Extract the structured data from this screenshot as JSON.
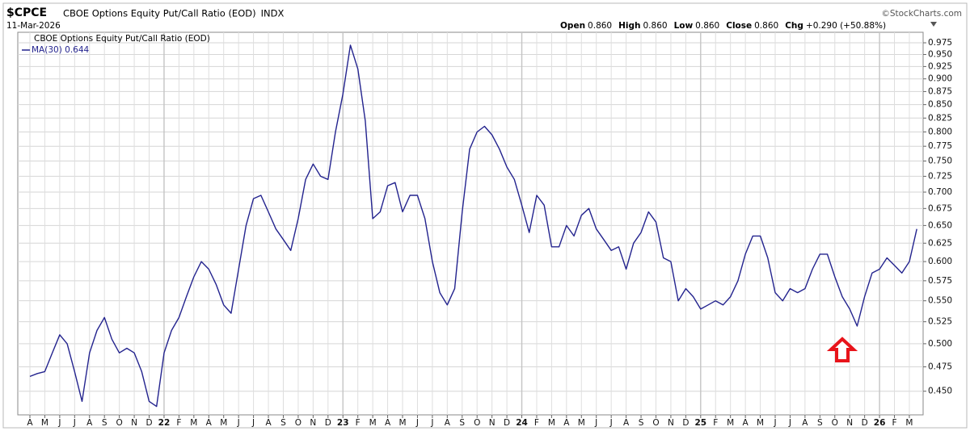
{
  "chart_data": {
    "type": "line",
    "symbol": "$CPCE",
    "title": "CBOE Options Equity Put/Call Ratio (EOD)",
    "exchange": "INDX",
    "date": "11-Mar-2026",
    "source": "©StockCharts.com",
    "quote": [
      {
        "label": "Open",
        "value": "0.860"
      },
      {
        "label": "High",
        "value": "0.860"
      },
      {
        "label": "Low",
        "value": "0.860"
      },
      {
        "label": "Close",
        "value": "0.860"
      },
      {
        "label": "Chg",
        "value": "+0.290 (+50.88%)"
      }
    ],
    "legend_title": "CBOE Options Equity Put/Call Ratio (EOD)",
    "log": true,
    "grid": true,
    "legend": "upper left",
    "categories": [
      "A",
      null,
      "M",
      null,
      "J",
      null,
      "J",
      null,
      "A",
      null,
      "S",
      null,
      "O",
      null,
      "N",
      null,
      "D",
      null,
      "22",
      null,
      "F",
      null,
      "M",
      null,
      "A",
      null,
      "M",
      null,
      "J",
      null,
      "J",
      null,
      "A",
      null,
      "S",
      null,
      "O",
      null,
      "N",
      null,
      "D",
      null,
      "23",
      null,
      "F",
      null,
      "M",
      null,
      "A",
      null,
      "M",
      null,
      "J",
      null,
      "J",
      null,
      "A",
      null,
      "S",
      null,
      "O",
      null,
      "N",
      null,
      "D",
      null,
      "24",
      null,
      "F",
      null,
      "M",
      null,
      "A",
      null,
      "M",
      null,
      "J",
      null,
      "J",
      null,
      "A",
      null,
      "S",
      null,
      "O",
      null,
      "N",
      null,
      "D",
      null,
      "25",
      null,
      "F",
      null,
      "M",
      null,
      "A",
      null,
      "M",
      null,
      "J",
      null,
      "J",
      null,
      "A",
      null,
      "S",
      null,
      "O",
      null,
      "N",
      null,
      "D",
      null,
      "26",
      null,
      "F",
      null,
      "M",
      null
    ],
    "series": [
      {
        "name": "MA(30) 0.644",
        "color": "#23238e",
        "values": [
          0.465,
          0.468,
          0.47,
          0.49,
          0.51,
          0.5,
          0.47,
          0.44,
          0.49,
          0.515,
          0.53,
          0.505,
          0.49,
          0.495,
          0.49,
          0.47,
          0.44,
          0.435,
          0.49,
          0.515,
          0.53,
          0.555,
          0.58,
          0.6,
          0.59,
          0.57,
          0.545,
          0.535,
          0.59,
          0.65,
          0.69,
          0.695,
          0.67,
          0.645,
          0.63,
          0.615,
          0.66,
          0.72,
          0.745,
          0.725,
          0.72,
          0.8,
          0.87,
          0.97,
          0.92,
          0.82,
          0.66,
          0.67,
          0.71,
          0.715,
          0.67,
          0.695,
          0.695,
          0.66,
          0.6,
          0.56,
          0.545,
          0.565,
          0.67,
          0.77,
          0.8,
          0.81,
          0.795,
          0.77,
          0.74,
          0.72,
          0.68,
          0.64,
          0.695,
          0.68,
          0.62,
          0.62,
          0.65,
          0.635,
          0.665,
          0.675,
          0.645,
          0.63,
          0.615,
          0.62,
          0.59,
          0.625,
          0.64,
          0.67,
          0.655,
          0.605,
          0.6,
          0.55,
          0.565,
          0.555,
          0.54,
          0.545,
          0.55,
          0.545,
          0.555,
          0.575,
          0.61,
          0.635,
          0.635,
          0.605,
          0.56,
          0.55,
          0.565,
          0.56,
          0.565,
          0.59,
          0.61,
          0.61,
          0.58,
          0.555,
          0.54,
          0.52,
          0.555,
          0.585,
          0.59,
          0.605,
          0.595,
          0.585,
          0.6,
          0.645
        ]
      }
    ],
    "ylim": [
      0.427,
      0.998
    ],
    "yticks": [
      {
        "value": 0.45,
        "label": "0.450"
      },
      {
        "value": 0.475,
        "label": "0.475"
      },
      {
        "value": 0.5,
        "label": "0.500"
      },
      {
        "value": 0.525,
        "label": "0.525"
      },
      {
        "value": 0.55,
        "label": "0.550"
      },
      {
        "value": 0.575,
        "label": "0.575"
      },
      {
        "value": 0.6,
        "label": "0.600"
      },
      {
        "value": 0.625,
        "label": "0.625"
      },
      {
        "value": 0.65,
        "label": "0.650"
      },
      {
        "value": 0.675,
        "label": "0.675"
      },
      {
        "value": 0.7,
        "label": "0.700"
      },
      {
        "value": 0.725,
        "label": "0.725"
      },
      {
        "value": 0.75,
        "label": "0.750"
      },
      {
        "value": 0.775,
        "label": "0.775"
      },
      {
        "value": 0.8,
        "label": "0.800"
      },
      {
        "value": 0.825,
        "label": "0.825"
      },
      {
        "value": 0.85,
        "label": "0.850"
      },
      {
        "value": 0.875,
        "label": "0.875"
      },
      {
        "value": 0.9,
        "label": "0.900"
      },
      {
        "value": 0.925,
        "label": "0.925"
      },
      {
        "value": 0.95,
        "label": "0.950"
      },
      {
        "value": 0.975,
        "label": "0.975"
      }
    ]
  }
}
